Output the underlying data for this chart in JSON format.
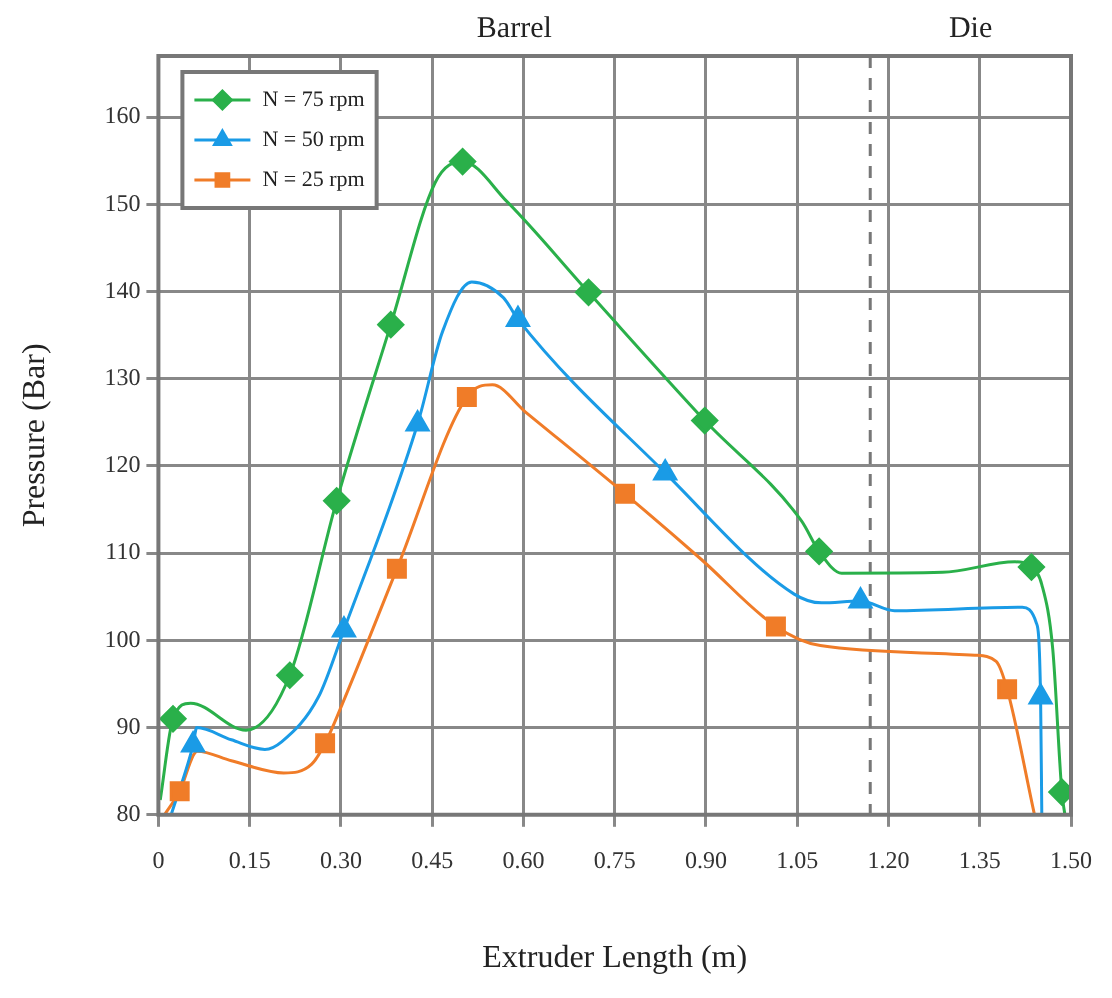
{
  "chart_data": {
    "type": "line",
    "xlabel": "Extruder Length (m)",
    "ylabel": "Pressure (Bar)",
    "xlim": [
      0,
      1.5
    ],
    "xticks": [
      0,
      {
        "value": 0.15,
        "label": "0.15"
      },
      {
        "value": 0.3,
        "label": "0.30"
      },
      {
        "value": 0.45,
        "label": "0.45"
      },
      {
        "value": 0.6,
        "label": "0.60"
      },
      {
        "value": 0.75,
        "label": "0.75"
      },
      {
        "value": 0.9,
        "label": "0.90"
      },
      {
        "value": 1.05,
        "label": "1.05"
      },
      {
        "value": 1.2,
        "label": "1.20"
      },
      {
        "value": 1.35,
        "label": "1.35"
      },
      {
        "value": 1.5,
        "label": "1.50"
      }
    ],
    "ylim": [
      80,
      167
    ],
    "yticks": [
      80,
      90,
      100,
      110,
      120,
      130,
      140,
      150,
      160
    ],
    "grid": true,
    "legend": "top left",
    "annotations": [
      "Barrel",
      "Die"
    ],
    "ref_lines": [
      {
        "axis": "x",
        "value": 1.17,
        "color": "#777777",
        "line_style": "dashed"
      }
    ],
    "series": [
      {
        "name": "N = 75 rpm",
        "type": "scatter",
        "marker": "diamond",
        "color": "#2ab04a",
        "x": [
          0.024,
          0.216,
          0.293,
          0.382,
          0.5,
          0.707,
          0.898,
          1.086,
          1.435,
          1.485
        ],
        "values": [
          91,
          96,
          116,
          136.2,
          154.9,
          139.9,
          125.2,
          110.2,
          108.4,
          82.6
        ]
      },
      {
        "name": "N = 50 rpm",
        "type": "scatter",
        "marker": "triangle",
        "color": "#1a9be6",
        "x": [
          0.057,
          0.305,
          0.426,
          0.591,
          0.833,
          1.154,
          1.45
        ],
        "values": [
          88,
          101.2,
          124.8,
          136.8,
          119.2,
          104.5,
          93.5
        ]
      },
      {
        "name": "N = 25 rpm",
        "type": "scatter",
        "marker": "square",
        "color": "#f07c28",
        "x": [
          0.035,
          0.274,
          0.392,
          0.507,
          0.767,
          1.015,
          1.395
        ],
        "values": [
          82.7,
          88.2,
          108.2,
          127.9,
          116.8,
          101.6,
          94.4
        ]
      },
      {
        "marker": "none",
        "color": "#2ab04a",
        "x": [
          0.003,
          0.024,
          0.053,
          0.144,
          0.216,
          0.293,
          0.382,
          0.455,
          0.5,
          0.573,
          0.707,
          0.898,
          1.057,
          1.086,
          1.123,
          1.289,
          1.408,
          1.435,
          1.452,
          1.47,
          1.485,
          1.49
        ],
        "values": [
          81.7,
          91,
          92.8,
          89.7,
          96,
          116,
          136.2,
          152.5,
          154.9,
          150.3,
          139.9,
          125.2,
          113.7,
          110.2,
          107.7,
          107.8,
          109,
          108.4,
          106.4,
          99,
          82.6,
          80
        ]
      },
      {
        "marker": "none",
        "color": "#1a9be6",
        "x": [
          0.021,
          0.057,
          0.063,
          0.12,
          0.175,
          0.203,
          0.263,
          0.305,
          0.426,
          0.467,
          0.515,
          0.567,
          0.591,
          0.833,
          1.045,
          1.09,
          1.154,
          1.21,
          1.42,
          1.443,
          1.45,
          1.452
        ],
        "values": [
          80,
          88,
          90,
          88.6,
          87.5,
          88.4,
          93.5,
          101.2,
          124.8,
          135.4,
          141.1,
          139.3,
          136.8,
          119.2,
          105.3,
          104.3,
          104.5,
          103.4,
          103.8,
          102,
          93.5,
          80
        ]
      },
      {
        "marker": "none",
        "color": "#f07c28",
        "x": [
          0.01,
          0.035,
          0.064,
          0.12,
          0.206,
          0.252,
          0.274,
          0.307,
          0.392,
          0.507,
          0.549,
          0.603,
          0.767,
          0.892,
          1.015,
          1.088,
          1.342,
          1.377,
          1.395,
          1.44
        ],
        "values": [
          80,
          82.7,
          87.3,
          86.2,
          84.8,
          85.8,
          88.2,
          93.5,
          108.2,
          127.9,
          129.3,
          126.2,
          116.8,
          109.3,
          101.6,
          99.4,
          98.3,
          97.6,
          94.4,
          80
        ]
      }
    ]
  }
}
